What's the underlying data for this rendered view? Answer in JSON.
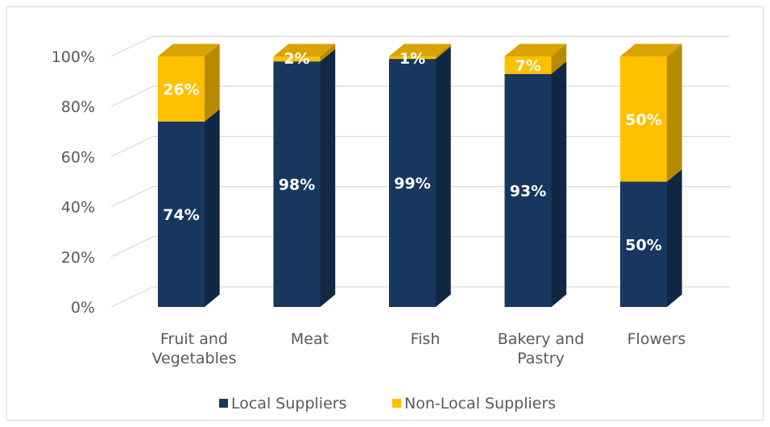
{
  "chart_data": {
    "type": "bar",
    "stacked": true,
    "percent": true,
    "style": "3d-column",
    "categories": [
      [
        "Fruit and",
        "Vegetables"
      ],
      [
        "Meat"
      ],
      [
        "Fish"
      ],
      [
        "Bakery and",
        "Pastry"
      ],
      [
        "Flowers"
      ]
    ],
    "series": [
      {
        "name": "Local Suppliers",
        "color": "#17375E",
        "values": [
          74,
          98,
          99,
          93,
          50
        ],
        "labels": [
          "74%",
          "98%",
          "99%",
          "93%",
          "50%"
        ]
      },
      {
        "name": "Non-Local Suppliers",
        "color": "#FFC000",
        "values": [
          26,
          2,
          1,
          7,
          50
        ],
        "labels": [
          "26%",
          "2%",
          "1%",
          "7%",
          "50%"
        ]
      }
    ],
    "yticks": [
      "0%",
      "20%",
      "40%",
      "60%",
      "80%",
      "100%"
    ],
    "ylim": [
      0,
      100
    ],
    "grid": true,
    "legend_position": "bottom",
    "title": "",
    "xlabel": "",
    "ylabel": ""
  }
}
